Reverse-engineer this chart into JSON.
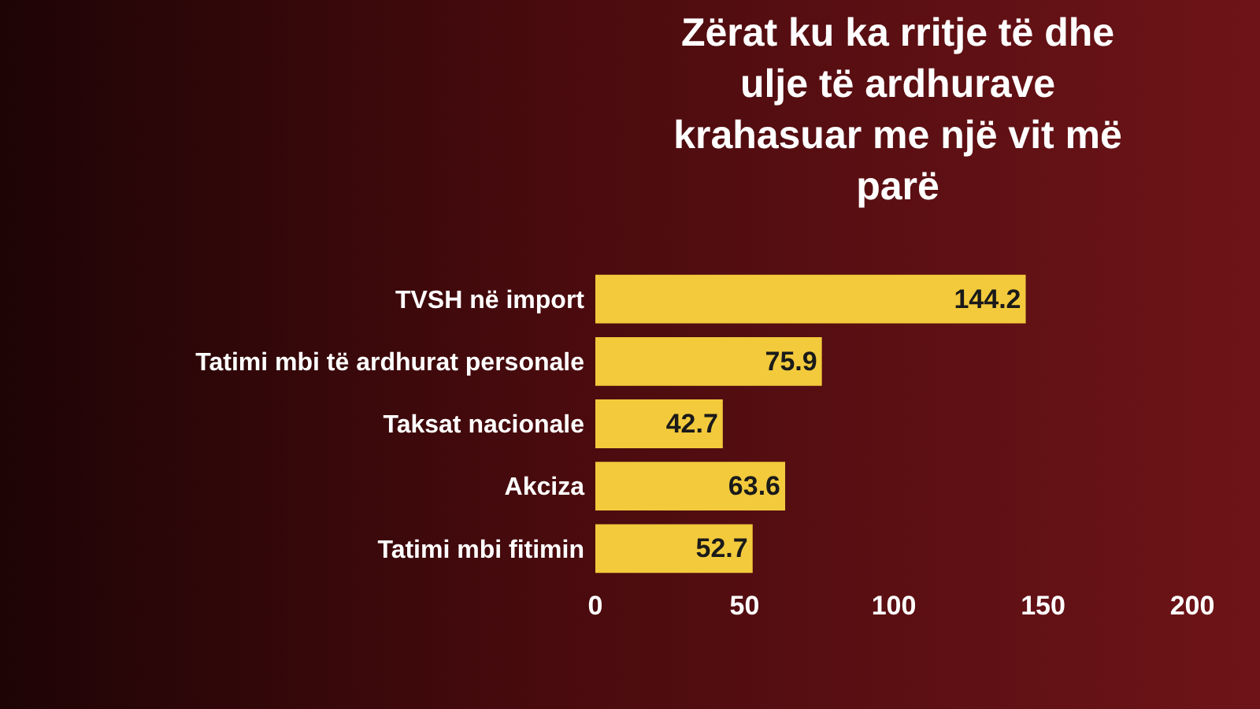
{
  "chart_data": {
    "type": "bar",
    "orientation": "horizontal",
    "title": "Zërat ku ka rritje të dhe ulje të ardhurave krahasuar me një vit më parë",
    "categories": [
      "TVSH në import",
      "Tatimi mbi të ardhurat personale",
      "Taksat nacionale",
      "Akciza",
      "Tatimi mbi fitimin"
    ],
    "values": [
      144.2,
      75.9,
      42.7,
      63.6,
      52.7
    ],
    "color": "#f2ca3c",
    "xlim": [
      0,
      200
    ],
    "xticks": [
      0,
      50,
      100,
      150,
      200
    ],
    "data_labels": true,
    "grid": false
  }
}
